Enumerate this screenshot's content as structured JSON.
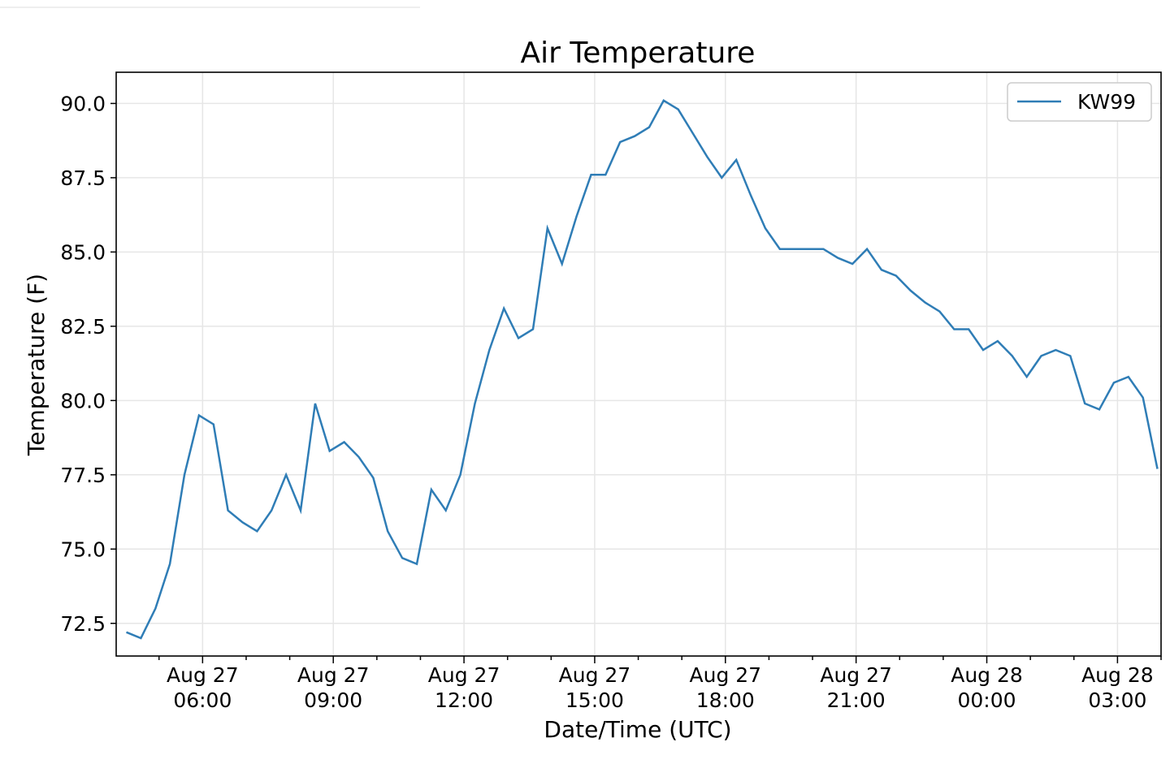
{
  "colors": {
    "series": "#2f7db6",
    "grid": "#e6e6e6",
    "background": "#ffffff"
  },
  "chart_data": {
    "type": "line",
    "title": "Air Temperature",
    "xlabel": "Date/Time (UTC)",
    "ylabel": "Temperature (F)",
    "ylim": [
      71.4,
      91.05
    ],
    "xlim": [
      "2023-08-27 04:01",
      "2023-08-28 04:00"
    ],
    "yticks": [
      "72.5",
      "75.0",
      "77.5",
      "80.0",
      "82.5",
      "85.0",
      "87.5",
      "90.0"
    ],
    "xticks": [
      {
        "x": "2023-08-27 06:00",
        "line1": "Aug 27",
        "line2": "06:00"
      },
      {
        "x": "2023-08-27 09:00",
        "line1": "Aug 27",
        "line2": "09:00"
      },
      {
        "x": "2023-08-27 12:00",
        "line1": "Aug 27",
        "line2": "12:00"
      },
      {
        "x": "2023-08-27 15:00",
        "line1": "Aug 27",
        "line2": "15:00"
      },
      {
        "x": "2023-08-27 18:00",
        "line1": "Aug 27",
        "line2": "18:00"
      },
      {
        "x": "2023-08-27 21:00",
        "line1": "Aug 27",
        "line2": "21:00"
      },
      {
        "x": "2023-08-28 00:00",
        "line1": "Aug 28",
        "line2": "00:00"
      },
      {
        "x": "2023-08-28 03:00",
        "line1": "Aug 28",
        "line2": "03:00"
      }
    ],
    "grid": true,
    "legend_position": "top-right",
    "series": [
      {
        "name": "KW99",
        "x": [
          "2023-08-27 04:15",
          "2023-08-27 04:35",
          "2023-08-27 04:55",
          "2023-08-27 05:15",
          "2023-08-27 05:35",
          "2023-08-27 05:55",
          "2023-08-27 06:15",
          "2023-08-27 06:35",
          "2023-08-27 06:55",
          "2023-08-27 07:15",
          "2023-08-27 07:35",
          "2023-08-27 07:55",
          "2023-08-27 08:15",
          "2023-08-27 08:35",
          "2023-08-27 08:55",
          "2023-08-27 09:15",
          "2023-08-27 09:35",
          "2023-08-27 09:55",
          "2023-08-27 10:15",
          "2023-08-27 10:35",
          "2023-08-27 10:55",
          "2023-08-27 11:15",
          "2023-08-27 11:35",
          "2023-08-27 11:55",
          "2023-08-27 12:15",
          "2023-08-27 12:35",
          "2023-08-27 12:55",
          "2023-08-27 13:15",
          "2023-08-27 13:35",
          "2023-08-27 13:55",
          "2023-08-27 14:15",
          "2023-08-27 14:35",
          "2023-08-27 14:55",
          "2023-08-27 15:15",
          "2023-08-27 15:35",
          "2023-08-27 15:55",
          "2023-08-27 16:15",
          "2023-08-27 16:35",
          "2023-08-27 16:55",
          "2023-08-27 17:15",
          "2023-08-27 17:35",
          "2023-08-27 17:55",
          "2023-08-27 18:15",
          "2023-08-27 18:35",
          "2023-08-27 18:55",
          "2023-08-27 19:15",
          "2023-08-27 19:35",
          "2023-08-27 19:55",
          "2023-08-27 20:15",
          "2023-08-27 20:35",
          "2023-08-27 20:55",
          "2023-08-27 21:15",
          "2023-08-27 21:35",
          "2023-08-27 21:55",
          "2023-08-27 22:15",
          "2023-08-27 22:35",
          "2023-08-27 22:55",
          "2023-08-27 23:15",
          "2023-08-27 23:35",
          "2023-08-27 23:55",
          "2023-08-28 00:15",
          "2023-08-28 00:35",
          "2023-08-28 00:55",
          "2023-08-28 01:15",
          "2023-08-28 01:35",
          "2023-08-28 01:55",
          "2023-08-28 02:15",
          "2023-08-28 02:35",
          "2023-08-28 02:55",
          "2023-08-28 03:15",
          "2023-08-28 03:35",
          "2023-08-28 03:55"
        ],
        "values": [
          72.2,
          72.0,
          73.0,
          74.5,
          77.5,
          79.5,
          79.2,
          76.3,
          75.9,
          75.6,
          76.3,
          77.5,
          76.3,
          79.9,
          78.3,
          78.6,
          78.1,
          77.4,
          75.6,
          74.7,
          74.5,
          77.0,
          76.3,
          77.5,
          79.9,
          81.7,
          83.1,
          82.1,
          82.4,
          85.8,
          84.6,
          86.2,
          87.6,
          87.6,
          88.7,
          88.9,
          89.2,
          90.1,
          89.8,
          89.0,
          88.2,
          87.5,
          88.1,
          86.9,
          85.8,
          85.1,
          85.1,
          85.1,
          85.1,
          84.8,
          84.6,
          85.1,
          84.4,
          84.2,
          83.7,
          83.3,
          83.0,
          82.4,
          82.4,
          81.7,
          82.0,
          81.5,
          80.8,
          81.5,
          81.7,
          81.5,
          79.9,
          79.7,
          80.6,
          80.8,
          80.1,
          77.7
        ]
      }
    ]
  }
}
